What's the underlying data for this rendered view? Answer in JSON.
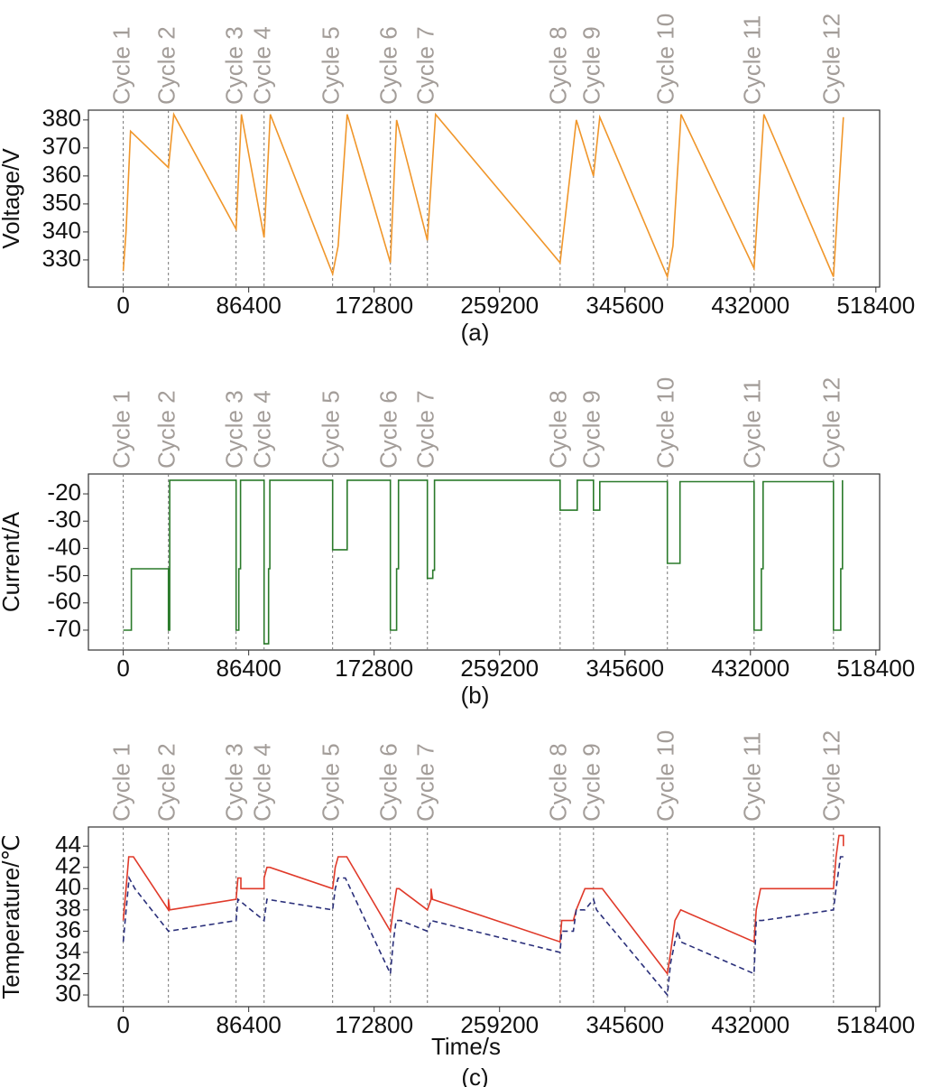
{
  "chart_data": [
    {
      "type": "line",
      "ylabel": "Voltage/V",
      "caption": "(a)",
      "xlim": [
        -24000,
        521000
      ],
      "xticks": [
        0,
        86400,
        172800,
        259200,
        345600,
        432000,
        518400
      ],
      "ylim": [
        320.3,
        383.5
      ],
      "yticks": [
        330,
        340,
        350,
        360,
        370,
        380
      ],
      "markers": [
        {
          "label": "Cycle 1",
          "x": 0
        },
        {
          "label": "Cycle 2",
          "x": 31100
        },
        {
          "label": "Cycle 3",
          "x": 77700
        },
        {
          "label": "Cycle 4",
          "x": 97000
        },
        {
          "label": "Cycle 5",
          "x": 144200
        },
        {
          "label": "Cycle 6",
          "x": 184000
        },
        {
          "label": "Cycle 7",
          "x": 209500
        },
        {
          "label": "Cycle 8",
          "x": 300900
        },
        {
          "label": "Cycle 9",
          "x": 323900
        },
        {
          "label": "Cycle 10",
          "x": 374800
        },
        {
          "label": "Cycle 11",
          "x": 434500
        },
        {
          "label": "Cycle 12",
          "x": 489200
        }
      ],
      "series": [
        {
          "color": "#f0962a",
          "style": "solid",
          "x": [
            0,
            1900,
            5000,
            31100,
            34800,
            77700,
            81400,
            97000,
            101300,
            144200,
            148000,
            154200,
            184000,
            188300,
            209500,
            215100,
            300900,
            312100,
            323900,
            328200,
            374800,
            378600,
            384200,
            434500,
            441300,
            489200,
            496000
          ],
          "values": [
            326,
            340,
            376,
            363,
            382,
            341,
            382,
            338,
            382,
            325,
            335,
            382,
            329,
            380,
            337,
            382,
            329,
            380,
            360,
            381,
            324,
            335,
            382,
            327,
            382,
            324,
            381
          ]
        }
      ]
    },
    {
      "type": "line",
      "ylabel": "Current/A",
      "caption": "(b)",
      "xlim": [
        -24000,
        521000
      ],
      "xticks": [
        0,
        86400,
        172800,
        259200,
        345600,
        432000,
        518400
      ],
      "ylim": [
        -77.3,
        -12.7
      ],
      "yticks": [
        -70,
        -60,
        -50,
        -40,
        -30,
        -20
      ],
      "markers": [
        {
          "label": "Cycle 1",
          "x": 0
        },
        {
          "label": "Cycle 2",
          "x": 31100
        },
        {
          "label": "Cycle 3",
          "x": 77700
        },
        {
          "label": "Cycle 4",
          "x": 97000
        },
        {
          "label": "Cycle 5",
          "x": 144200
        },
        {
          "label": "Cycle 6",
          "x": 184000
        },
        {
          "label": "Cycle 7",
          "x": 209500
        },
        {
          "label": "Cycle 8",
          "x": 300900
        },
        {
          "label": "Cycle 9",
          "x": 323900
        },
        {
          "label": "Cycle 10",
          "x": 374800
        },
        {
          "label": "Cycle 11",
          "x": 434500
        },
        {
          "label": "Cycle 12",
          "x": 489200
        }
      ],
      "series": [
        {
          "color": "#2a7a2a",
          "style": "solid",
          "x": [
            0,
            5600,
            5600,
            31100,
            31100,
            32000,
            32000,
            77700,
            77700,
            79600,
            79600,
            80800,
            80800,
            97000,
            97000,
            100100,
            100100,
            101000,
            101000,
            144200,
            144200,
            154200,
            154200,
            184000,
            184000,
            188300,
            188300,
            189600,
            189600,
            209500,
            209500,
            213200,
            213200,
            214400,
            214400,
            300900,
            300900,
            312700,
            312700,
            323900,
            323900,
            328200,
            328200,
            374800,
            374800,
            383500,
            383500,
            434500,
            434500,
            439500,
            439500,
            440700,
            440700,
            489200,
            489200,
            494200,
            494200,
            495400,
            495400
          ],
          "values": [
            -70,
            -70,
            -47.5,
            -47.5,
            -70,
            -70,
            -15,
            -15,
            -70,
            -70,
            -47.5,
            -47.5,
            -15,
            -15,
            -75,
            -75,
            -47.5,
            -47.5,
            -15,
            -15,
            -40.5,
            -40.5,
            -15,
            -15,
            -70,
            -70,
            -47.5,
            -47.5,
            -15,
            -15,
            -51,
            -51,
            -48,
            -48,
            -15,
            -15,
            -26,
            -26,
            -15,
            -15,
            -26,
            -26,
            -15.5,
            -15.5,
            -45.5,
            -45.5,
            -15.5,
            -15.5,
            -70,
            -70,
            -47.5,
            -47.5,
            -15.5,
            -15.5,
            -70,
            -70,
            -47.5,
            -47.5,
            -15
          ]
        }
      ]
    },
    {
      "type": "line",
      "ylabel": "Temperature/℃",
      "xlabel": "Time/s",
      "caption": "(c)",
      "xlim": [
        -24000,
        521000
      ],
      "xticks": [
        0,
        86400,
        172800,
        259200,
        345600,
        432000,
        518400
      ],
      "ylim": [
        28.9,
        45.8
      ],
      "yticks": [
        30,
        32,
        34,
        36,
        38,
        40,
        42,
        44
      ],
      "markers": [
        {
          "label": "Cycle 1",
          "x": 0
        },
        {
          "label": "Cycle 2",
          "x": 31100
        },
        {
          "label": "Cycle 3",
          "x": 77700
        },
        {
          "label": "Cycle 4",
          "x": 97000
        },
        {
          "label": "Cycle 5",
          "x": 144200
        },
        {
          "label": "Cycle 6",
          "x": 184000
        },
        {
          "label": "Cycle 7",
          "x": 209500
        },
        {
          "label": "Cycle 8",
          "x": 300900
        },
        {
          "label": "Cycle 9",
          "x": 323900
        },
        {
          "label": "Cycle 10",
          "x": 374800
        },
        {
          "label": "Cycle 11",
          "x": 434500
        },
        {
          "label": "Cycle 12",
          "x": 489200
        }
      ],
      "series": [
        {
          "color": "#e03a2a",
          "style": "solid",
          "x": [
            0,
            1900,
            3800,
            7000,
            31100,
            31100,
            32000,
            77700,
            79000,
            81000,
            81000,
            97000,
            97000,
            99000,
            101000,
            144200,
            146000,
            148000,
            154000,
            184000,
            186000,
            188300,
            190000,
            209500,
            212000,
            212000,
            213000,
            300900,
            302000,
            310000,
            312000,
            318000,
            323900,
            330000,
            374800,
            377000,
            380000,
            384000,
            434500,
            436000,
            439000,
            489200,
            491000,
            493000,
            496000,
            496000
          ],
          "values": [
            37,
            40,
            43,
            43,
            38,
            39,
            38,
            39,
            41,
            41,
            40,
            40,
            41,
            42,
            42,
            40,
            42,
            43,
            43,
            36,
            38,
            40,
            40,
            38,
            39,
            40,
            39,
            35,
            37,
            37,
            38,
            40,
            40,
            40,
            32,
            34,
            37,
            38,
            35,
            38,
            40,
            40,
            43,
            45,
            45,
            44
          ]
        },
        {
          "color": "#2a2f7a",
          "style": "dashed",
          "x": [
            0,
            2000,
            4000,
            8000,
            31100,
            77700,
            79000,
            97000,
            99000,
            144200,
            146000,
            148000,
            153000,
            184000,
            186000,
            188000,
            191000,
            209500,
            212000,
            300900,
            302000,
            310000,
            312000,
            318000,
            323900,
            326000,
            374800,
            377000,
            380000,
            382000,
            384000,
            434500,
            436000,
            440000,
            489200,
            491000,
            494000,
            496000
          ],
          "values": [
            35,
            38,
            41,
            40,
            36,
            37,
            39,
            37,
            39,
            38,
            40,
            41,
            41,
            32,
            35,
            37,
            37,
            36,
            37,
            34,
            36,
            36,
            38,
            38,
            39,
            38,
            30,
            33,
            35,
            36,
            35,
            32,
            37,
            37,
            38,
            40,
            43,
            43
          ]
        }
      ]
    }
  ]
}
